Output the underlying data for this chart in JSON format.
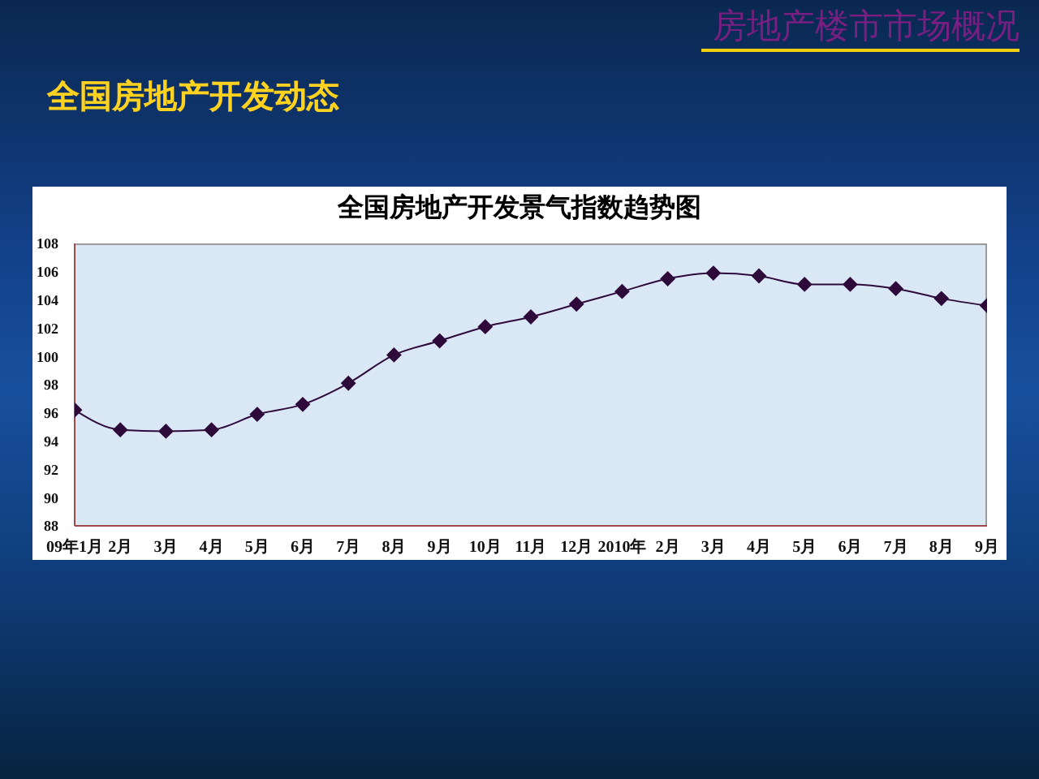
{
  "chart_data": {
    "type": "line",
    "title": "全国房地产开发景气指数趋势图",
    "annotations": [
      "房地产楼市市场概况",
      "全国房地产开发动态"
    ],
    "categories": [
      "09年1月",
      "2月",
      "3月",
      "4月",
      "5月",
      "6月",
      "7月",
      "8月",
      "9月",
      "10月",
      "11月",
      "12月",
      "2010年",
      "2月",
      "3月",
      "4月",
      "5月",
      "6月",
      "7月",
      "8月",
      "9月"
    ],
    "values": [
      96.2,
      94.8,
      94.7,
      94.8,
      95.9,
      96.6,
      98.1,
      100.1,
      101.1,
      102.1,
      102.8,
      103.7,
      104.6,
      105.5,
      105.9,
      105.7,
      105.1,
      105.1,
      104.8,
      104.1,
      103.6
    ],
    "color": "#2e0a3a",
    "ylim": [
      88,
      108
    ],
    "yticks": [
      88,
      90,
      92,
      94,
      96,
      98,
      100,
      102,
      104,
      106,
      108
    ],
    "grid": false,
    "marker": "diamond"
  }
}
